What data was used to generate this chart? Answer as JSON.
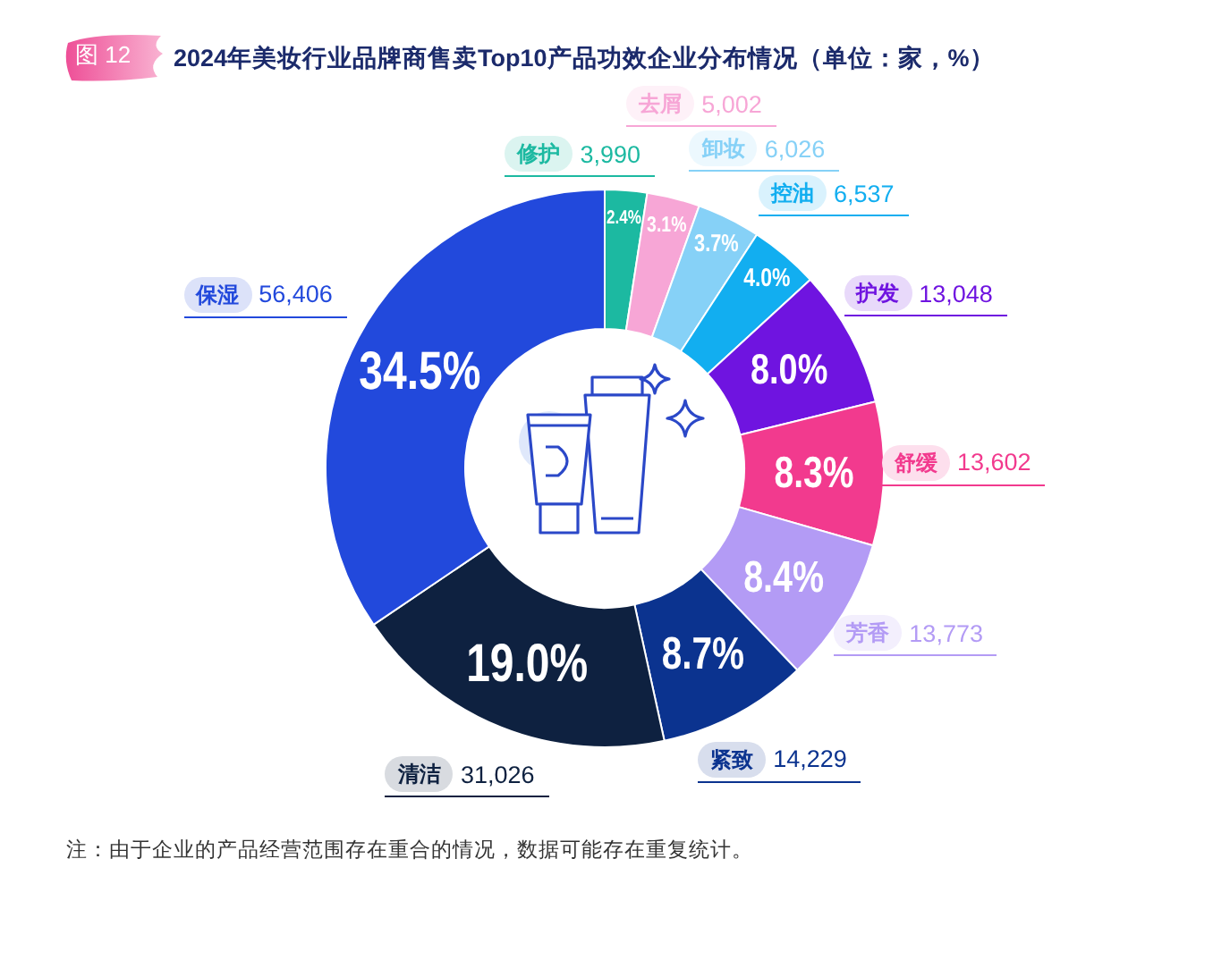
{
  "chart_data": {
    "type": "donut",
    "title": "2024年美妆行业品牌商售卖Top10产品功效企业分布情况（单位：家，%）",
    "categories": [
      "修护",
      "去屑",
      "卸妆",
      "控油",
      "护发",
      "舒缓",
      "芳香",
      "紧致",
      "清洁",
      "保湿"
    ],
    "values": [
      3990,
      5002,
      6026,
      6537,
      13048,
      13602,
      13773,
      14229,
      31026,
      56406
    ],
    "colors": [
      "#1cb9a1",
      "#f7a6d6",
      "#86d1f7",
      "#12aef0",
      "#6f14e0",
      "#f23a8e",
      "#b39bf5",
      "#0b338f",
      "#0e2140",
      "#2249dc"
    ],
    "value_labels": [
      "3,990",
      "5,002",
      "6,026",
      "6,537",
      "13,048",
      "13,602",
      "13,773",
      "14,229",
      "31,026",
      "56,406"
    ],
    "annotations": [
      "图 12",
      "注：由于企业的产品经营范围存在重合的情况，数据可能存在重复统计。",
      {
        "text": "2.4%",
        "x": "修护"
      },
      {
        "text": "3.1%",
        "x": "去屑"
      },
      {
        "text": "3.7%",
        "x": "卸妆"
      },
      {
        "text": "4.0%",
        "x": "控油"
      },
      {
        "text": "8.0%",
        "x": "护发"
      },
      {
        "text": "8.3%",
        "x": "舒缓"
      },
      {
        "text": "8.4%",
        "x": "芳香"
      },
      {
        "text": "8.7%",
        "x": "紧致"
      },
      {
        "text": "19.0%",
        "x": "清洁"
      },
      {
        "text": "34.5%",
        "x": "保湿"
      }
    ]
  }
}
